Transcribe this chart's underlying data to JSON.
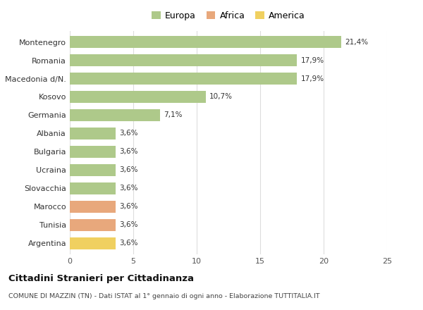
{
  "categories": [
    "Montenegro",
    "Romania",
    "Macedonia d/N.",
    "Kosovo",
    "Germania",
    "Albania",
    "Bulgaria",
    "Ucraina",
    "Slovacchia",
    "Marocco",
    "Tunisia",
    "Argentina"
  ],
  "values": [
    21.4,
    17.9,
    17.9,
    10.7,
    7.1,
    3.6,
    3.6,
    3.6,
    3.6,
    3.6,
    3.6,
    3.6
  ],
  "labels": [
    "21,4%",
    "17,9%",
    "17,9%",
    "10,7%",
    "7,1%",
    "3,6%",
    "3,6%",
    "3,6%",
    "3,6%",
    "3,6%",
    "3,6%",
    "3,6%"
  ],
  "continent": [
    "Europa",
    "Europa",
    "Europa",
    "Europa",
    "Europa",
    "Europa",
    "Europa",
    "Europa",
    "Europa",
    "Africa",
    "Africa",
    "America"
  ],
  "colors": {
    "Europa": "#aec98a",
    "Africa": "#e8a87c",
    "America": "#f0d060"
  },
  "legend_items": [
    {
      "label": "Europa",
      "color": "#aec98a"
    },
    {
      "label": "Africa",
      "color": "#e8a87c"
    },
    {
      "label": "America",
      "color": "#f0d060"
    }
  ],
  "xlim": [
    0,
    25
  ],
  "xticks": [
    0,
    5,
    10,
    15,
    20,
    25
  ],
  "title": "Cittadini Stranieri per Cittadinanza",
  "subtitle": "COMUNE DI MAZZIN (TN) - Dati ISTAT al 1° gennaio di ogni anno - Elaborazione TUTTITALIA.IT",
  "background_color": "#ffffff",
  "grid_color": "#dddddd",
  "bar_height": 0.65
}
